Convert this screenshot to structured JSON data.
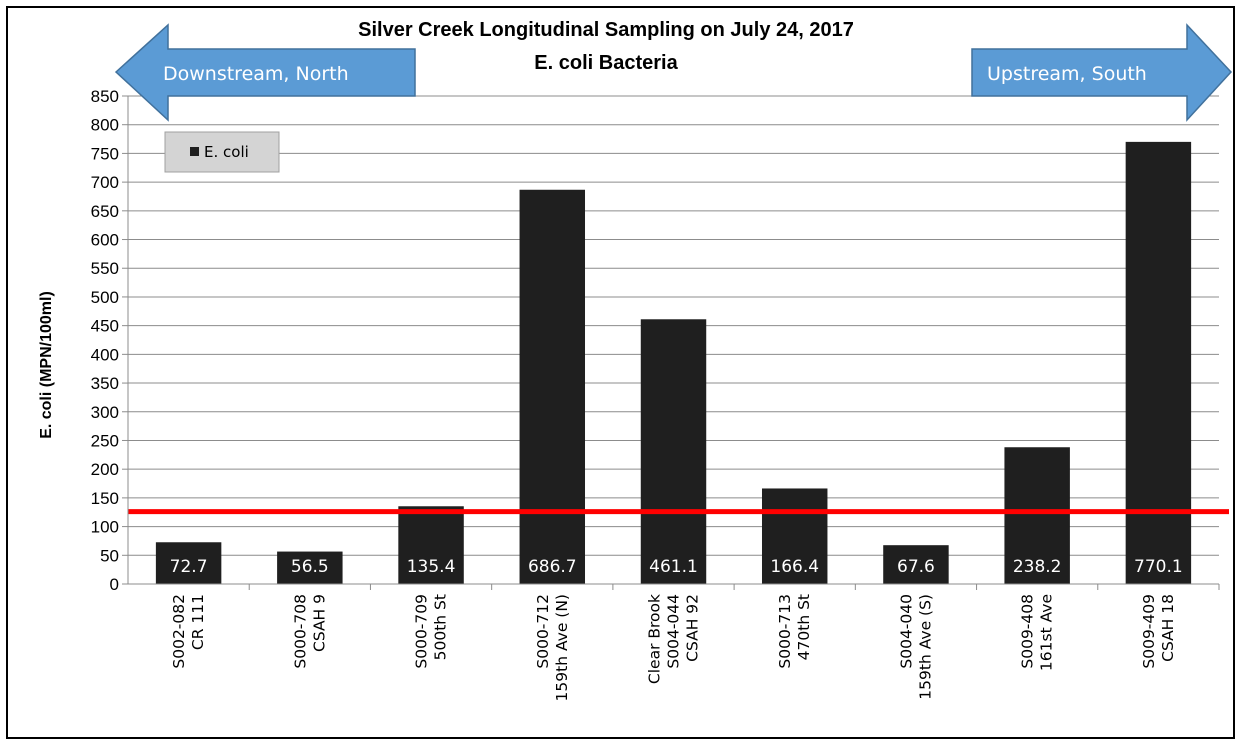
{
  "chart_data": {
    "type": "bar",
    "title": "Silver Creek Longitudinal Sampling on July 24, 2017",
    "subtitle": "E. coli Bacteria",
    "ylabel": "E. coli (MPN/100ml)",
    "xlabel": "",
    "ylim": [
      0,
      850
    ],
    "ytick_step": 50,
    "grid": true,
    "legend_position": "top-left",
    "categories": [
      [
        "S002-082",
        "CR 111"
      ],
      [
        "S000-708",
        "CSAH 9"
      ],
      [
        "S000-709",
        "500th St"
      ],
      [
        "S000-712",
        "159th Ave (N)"
      ],
      [
        "Clear Brook",
        "S004-044",
        "CSAH 92"
      ],
      [
        "S000-713",
        "470th St"
      ],
      [
        "S004-040",
        "159th Ave (S)"
      ],
      [
        "S009-408",
        "161st Ave"
      ],
      [
        "S009-409",
        "CSAH 18"
      ]
    ],
    "series": [
      {
        "name": "E. coli",
        "color": "#1f1f1f",
        "values": [
          72.7,
          56.5,
          135.4,
          686.7,
          461.1,
          166.4,
          67.6,
          238.2,
          770.1
        ],
        "labels": [
          "72.7",
          "56.5",
          "135.4",
          "686.7",
          "461.1",
          "166.4",
          "67.6",
          "238.2",
          "770.1"
        ]
      }
    ],
    "reference_line": {
      "value": 126,
      "color": "#ff0000"
    },
    "annotations": {
      "left_arrow": "Downstream, North",
      "right_arrow": "Upstream, South",
      "arrow_color": "#5b9bd5"
    }
  }
}
